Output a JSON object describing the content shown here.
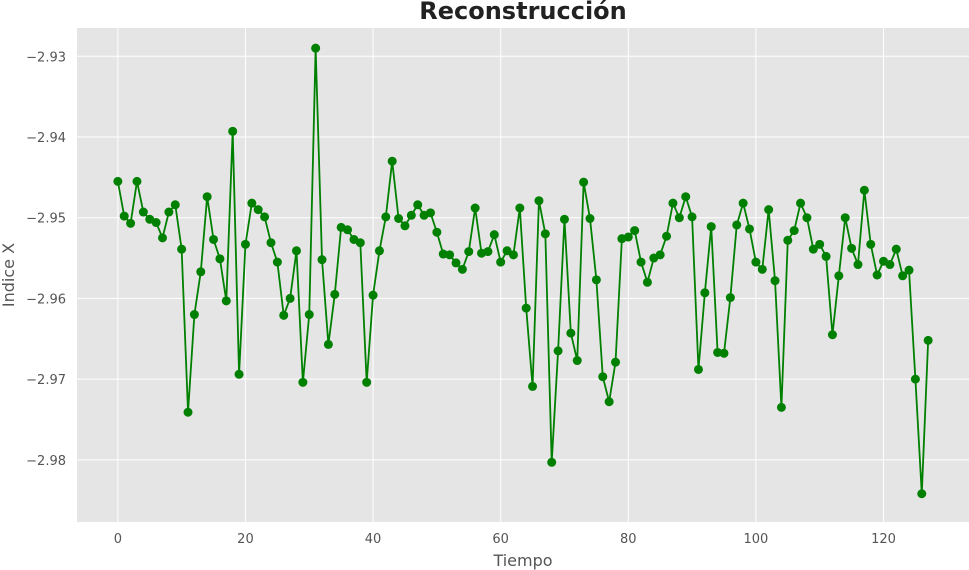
{
  "chart_data": {
    "type": "line",
    "title": "Reconstrucción",
    "xlabel": "Tiempo",
    "ylabel": "Indice X",
    "xlim": [
      -6.4,
      133.4
    ],
    "ylim": [
      -2.9877,
      -2.9265
    ],
    "x_ticks": [
      0,
      20,
      40,
      60,
      80,
      100,
      120
    ],
    "y_ticks": [
      -2.93,
      -2.94,
      -2.95,
      -2.96,
      -2.97,
      -2.98
    ],
    "x_tick_labels": [
      "0",
      "20",
      "40",
      "60",
      "80",
      "100",
      "120"
    ],
    "y_tick_labels": [
      "−2.93",
      "−2.94",
      "−2.95",
      "−2.96",
      "−2.97",
      "−2.98"
    ],
    "grid": true,
    "series": [
      {
        "color": "#008000",
        "marker": "circle",
        "x": [
          0,
          1,
          2,
          3,
          4,
          5,
          6,
          7,
          8,
          9,
          10,
          11,
          12,
          13,
          14,
          15,
          16,
          17,
          18,
          19,
          20,
          21,
          22,
          23,
          24,
          25,
          26,
          27,
          28,
          29,
          30,
          31,
          32,
          33,
          34,
          35,
          36,
          37,
          38,
          39,
          40,
          41,
          42,
          43,
          44,
          45,
          46,
          47,
          48,
          49,
          50,
          51,
          52,
          53,
          54,
          55,
          56,
          57,
          58,
          59,
          60,
          61,
          62,
          63,
          64,
          65,
          66,
          67,
          68,
          69,
          70,
          71,
          72,
          73,
          74,
          75,
          76,
          77,
          78,
          79,
          80,
          81,
          82,
          83,
          84,
          85,
          86,
          87,
          88,
          89,
          90,
          91,
          92,
          93,
          94,
          95,
          96,
          97,
          98,
          99,
          100,
          101,
          102,
          103,
          104,
          105,
          106,
          107,
          108,
          109,
          110,
          111,
          112,
          113,
          114,
          115,
          116,
          117,
          118,
          119,
          120,
          121,
          122,
          123,
          124,
          125,
          126,
          127
        ],
        "y": [
          -2.9455,
          -2.9498,
          -2.9507,
          -2.9455,
          -2.9493,
          -2.9502,
          -2.9506,
          -2.9525,
          -2.9493,
          -2.9484,
          -2.9539,
          -2.9741,
          -2.962,
          -2.9567,
          -2.9474,
          -2.9527,
          -2.9551,
          -2.9603,
          -2.9393,
          -2.9694,
          -2.9533,
          -2.9482,
          -2.949,
          -2.9499,
          -2.9531,
          -2.9555,
          -2.9621,
          -2.96,
          -2.9541,
          -2.9704,
          -2.962,
          -2.929,
          -2.9552,
          -2.9657,
          -2.9595,
          -2.9512,
          -2.9515,
          -2.9527,
          -2.9531,
          -2.9704,
          -2.9596,
          -2.9541,
          -2.9499,
          -2.943,
          -2.9501,
          -2.951,
          -2.9497,
          -2.9484,
          -2.9497,
          -2.9494,
          -2.9518,
          -2.9545,
          -2.9546,
          -2.9556,
          -2.9564,
          -2.9542,
          -2.9488,
          -2.9544,
          -2.9542,
          -2.9521,
          -2.9555,
          -2.9541,
          -2.9546,
          -2.9488,
          -2.9612,
          -2.9709,
          -2.9479,
          -2.952,
          -2.9803,
          -2.9665,
          -2.9502,
          -2.9643,
          -2.9677,
          -2.9456,
          -2.9501,
          -2.9577,
          -2.9697,
          -2.9728,
          -2.9679,
          -2.9526,
          -2.9524,
          -2.9516,
          -2.9555,
          -2.958,
          -2.955,
          -2.9546,
          -2.9523,
          -2.9482,
          -2.95,
          -2.9474,
          -2.9499,
          -2.9688,
          -2.9593,
          -2.9511,
          -2.9667,
          -2.9668,
          -2.9599,
          -2.9509,
          -2.9482,
          -2.9514,
          -2.9555,
          -2.9564,
          -2.949,
          -2.9578,
          -2.9735,
          -2.9528,
          -2.9516,
          -2.9482,
          -2.95,
          -2.9539,
          -2.9533,
          -2.9548,
          -2.9645,
          -2.9572,
          -2.95,
          -2.9538,
          -2.9558,
          -2.9466,
          -2.9533,
          -2.9571,
          -2.9554,
          -2.9558,
          -2.9539,
          -2.9572,
          -2.9565,
          -2.97,
          -2.9842,
          -2.9652
        ]
      }
    ]
  }
}
